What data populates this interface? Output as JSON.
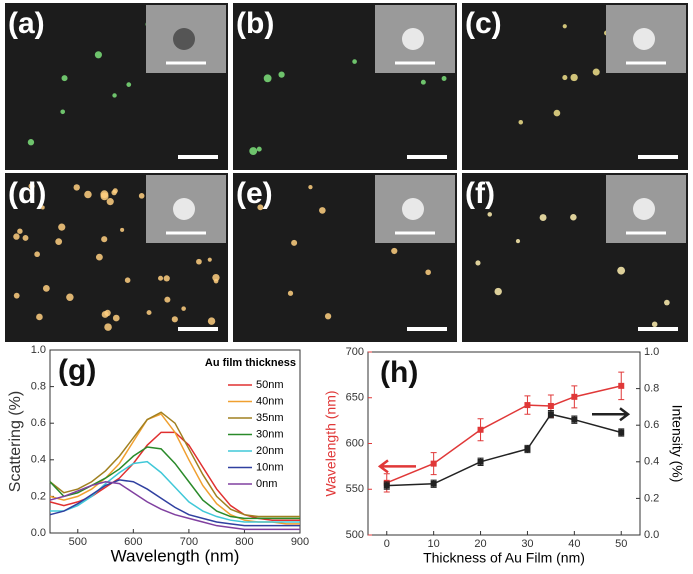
{
  "panels": [
    {
      "label": "(a)"
    },
    {
      "label": "(b)"
    },
    {
      "label": "(c)"
    },
    {
      "label": "(d)"
    },
    {
      "label": "(e)"
    },
    {
      "label": "(f)"
    }
  ],
  "chart_data": [
    {
      "type": "line",
      "label": "(g)",
      "xlabel": "Wavelength (nm)",
      "ylabel": "Scattering (%)",
      "legend_title": "Au film thickness",
      "xlim": [
        450,
        900
      ],
      "xticks": [
        500,
        600,
        700,
        800,
        900
      ],
      "ylim": [
        0,
        1
      ],
      "yticks": [
        {
          "value": 0,
          "label": "0.0"
        },
        0.2,
        0.4,
        0.6,
        0.8,
        {
          "value": 1,
          "label": "1.0"
        }
      ],
      "x": [
        450,
        475,
        500,
        525,
        550,
        575,
        600,
        625,
        650,
        675,
        700,
        725,
        750,
        775,
        800,
        825,
        850,
        875,
        900
      ],
      "series": [
        {
          "name": "50nm",
          "color": "#e03030",
          "values": [
            0.17,
            0.15,
            0.17,
            0.2,
            0.25,
            0.3,
            0.38,
            0.48,
            0.55,
            0.55,
            0.48,
            0.36,
            0.24,
            0.15,
            0.1,
            0.08,
            0.07,
            0.07,
            0.07
          ]
        },
        {
          "name": "40nm",
          "color": "#f0a030",
          "values": [
            0.2,
            0.18,
            0.2,
            0.24,
            0.3,
            0.38,
            0.5,
            0.62,
            0.65,
            0.55,
            0.4,
            0.26,
            0.16,
            0.1,
            0.07,
            0.06,
            0.06,
            0.05,
            0.05
          ]
        },
        {
          "name": "35nm",
          "color": "#a08020",
          "values": [
            0.28,
            0.22,
            0.24,
            0.28,
            0.34,
            0.42,
            0.52,
            0.62,
            0.66,
            0.6,
            0.46,
            0.32,
            0.2,
            0.13,
            0.1,
            0.09,
            0.09,
            0.09,
            0.09
          ]
        },
        {
          "name": "30nm",
          "color": "#2a8a2a",
          "values": [
            0.28,
            0.2,
            0.22,
            0.26,
            0.3,
            0.35,
            0.42,
            0.47,
            0.46,
            0.38,
            0.28,
            0.18,
            0.12,
            0.09,
            0.08,
            0.08,
            0.08,
            0.08,
            0.08
          ]
        },
        {
          "name": "20nm",
          "color": "#40c8d8",
          "values": [
            0.12,
            0.12,
            0.15,
            0.2,
            0.27,
            0.33,
            0.38,
            0.39,
            0.33,
            0.25,
            0.17,
            0.12,
            0.09,
            0.07,
            0.06,
            0.06,
            0.06,
            0.06,
            0.06
          ]
        },
        {
          "name": "10nm",
          "color": "#3040a0",
          "values": [
            0.1,
            0.12,
            0.16,
            0.21,
            0.26,
            0.29,
            0.28,
            0.24,
            0.19,
            0.14,
            0.1,
            0.08,
            0.06,
            0.05,
            0.04,
            0.04,
            0.04,
            0.04,
            0.04
          ]
        },
        {
          "name": "0nm",
          "color": "#8040a0",
          "values": [
            0.18,
            0.2,
            0.23,
            0.26,
            0.28,
            0.27,
            0.22,
            0.17,
            0.13,
            0.1,
            0.08,
            0.06,
            0.04,
            0.03,
            0.02,
            0.02,
            0.02,
            0.02,
            0.02
          ]
        }
      ]
    },
    {
      "type": "line",
      "label": "(h)",
      "xlabel": "Thickness of Au Film (nm)",
      "ylabel": "Wavelength (nm)",
      "y2label": "Intensity (%)",
      "xlim": [
        -4,
        54
      ],
      "xticks": [
        0,
        10,
        20,
        30,
        40,
        50
      ],
      "ylim": [
        500,
        700
      ],
      "yticks": [
        500,
        550,
        600,
        650,
        700
      ],
      "y2lim": [
        0,
        1
      ],
      "y2ticks": [
        {
          "value": 0,
          "label": "0.0"
        },
        0.2,
        0.4,
        0.6,
        0.8,
        {
          "value": 1,
          "label": "1.0"
        }
      ],
      "x": [
        0,
        10,
        20,
        30,
        35,
        40,
        50
      ],
      "series": [
        {
          "name": "Wavelength",
          "color": "#e03838",
          "values": [
            557,
            578,
            615,
            642,
            641,
            651,
            663
          ],
          "errors": [
            10,
            12,
            12,
            10,
            12,
            12,
            15
          ]
        },
        {
          "name": "Intensity",
          "color": "#222222",
          "axis": "y2",
          "values": [
            0.27,
            0.28,
            0.4,
            0.47,
            0.66,
            0.63,
            0.56
          ],
          "errors": [
            0.02,
            0.02,
            0.02,
            0.02,
            0.02,
            0.02,
            0.02
          ]
        }
      ]
    }
  ]
}
